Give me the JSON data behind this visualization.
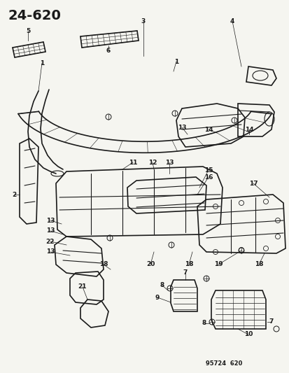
{
  "title": "24–620",
  "subtitle": "95724  620",
  "bg_color": "#f5f5f0",
  "line_color": "#1a1a1a",
  "text_color": "#1a1a1a",
  "figsize": [
    4.14,
    5.33
  ],
  "dpi": 100
}
